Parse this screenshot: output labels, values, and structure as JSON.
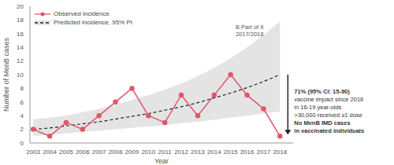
{
  "chart_data": {
    "type": "line",
    "x_label": "Year",
    "y_label": "Number of MenB cases",
    "x": [
      2003,
      2004,
      2005,
      2006,
      2007,
      2008,
      2009,
      2010,
      2011,
      2012,
      2013,
      2014,
      2015,
      2016,
      2017,
      2018
    ],
    "series": [
      {
        "name": "Observed incidence",
        "color": "#e2566a",
        "marker": "circle",
        "line_style": "solid",
        "values": [
          2,
          1,
          3,
          2,
          4,
          6,
          8,
          4,
          3,
          7,
          4,
          7,
          10,
          7,
          5,
          1
        ]
      },
      {
        "name": "Predicted incidence, 95% PI",
        "color": "#222222",
        "marker": "none",
        "line_style": "dashed",
        "values": [
          2.0,
          2.2,
          2.5,
          2.8,
          3.1,
          3.5,
          3.9,
          4.3,
          4.8,
          5.3,
          5.9,
          6.6,
          7.3,
          8.1,
          9.0,
          10.0
        ],
        "lower": [
          1.0,
          1.2,
          1.4,
          1.6,
          1.8,
          2.0,
          2.2,
          2.4,
          2.6,
          2.9,
          3.1,
          3.4,
          3.7,
          4.0,
          4.3,
          4.6
        ],
        "upper": [
          3.5,
          3.7,
          4.0,
          4.5,
          5.0,
          5.6,
          6.3,
          7.0,
          7.8,
          8.7,
          9.8,
          11.0,
          12.4,
          14.0,
          15.8,
          17.8
        ]
      }
    ],
    "xlim": [
      2002.8,
      2018.8
    ],
    "xticks": [
      2003,
      2004,
      2005,
      2006,
      2007,
      2008,
      2009,
      2010,
      2011,
      2012,
      2013,
      2014,
      2015,
      2016,
      2017,
      2018
    ],
    "ylim": [
      0,
      20
    ],
    "yticks": [
      0,
      2,
      4,
      6,
      8,
      10,
      12,
      14,
      16,
      18,
      20
    ],
    "grid": false,
    "legend": "upper left",
    "annotations": {
      "campaign": [
        "B Part of It",
        "2017/2018"
      ],
      "impact": [
        "71% (95% CI: 15-90)",
        "vaccine impact since 2016",
        "in 16-19 year-olds",
        ">30,000 received ≥1 dose"
      ],
      "impact_note": [
        "No MenB IMD cases",
        "in vaccinated individuals"
      ]
    }
  }
}
